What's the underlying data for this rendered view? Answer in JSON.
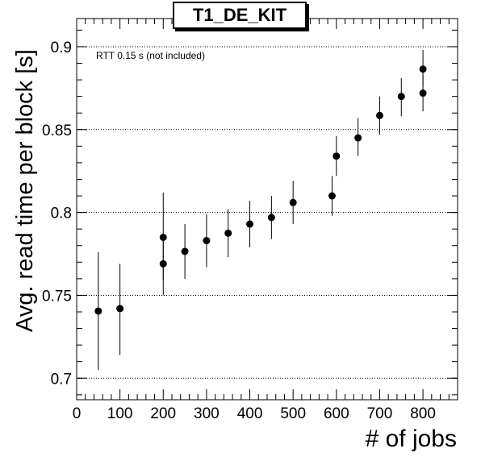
{
  "chart_data": {
    "type": "scatter",
    "title": "T1_DE_KIT",
    "annotation": "RTT 0.15 s (not included)",
    "xlabel": "# of jobs",
    "ylabel": "Avg. read time per block [s]",
    "xlim": [
      0,
      880
    ],
    "ylim": [
      0.687,
      0.917
    ],
    "x_ticks": [
      0,
      100,
      200,
      300,
      400,
      500,
      600,
      700,
      800
    ],
    "y_ticks": [
      0.7,
      0.75,
      0.8,
      0.85,
      0.9
    ],
    "y_tick_labels": [
      "0.7",
      "0.75",
      "0.8",
      "0.85",
      "0.9"
    ],
    "y_grid": true,
    "grid_style": "dotted",
    "series": [
      {
        "x": [
          50,
          100,
          200,
          200,
          250,
          300,
          350,
          400,
          450,
          500,
          590,
          600,
          650,
          700,
          750,
          800,
          800
        ],
        "y": [
          0.7405,
          0.742,
          0.785,
          0.769,
          0.7765,
          0.783,
          0.7875,
          0.793,
          0.797,
          0.806,
          0.81,
          0.834,
          0.845,
          0.8585,
          0.87,
          0.8865,
          0.872
        ],
        "y_low": [
          0.705,
          0.714,
          0.759,
          0.75,
          0.76,
          0.767,
          0.773,
          0.779,
          0.784,
          0.793,
          0.798,
          0.822,
          0.834,
          0.847,
          0.858,
          0.876,
          0.861
        ],
        "y_high": [
          0.776,
          0.769,
          0.812,
          0.787,
          0.793,
          0.799,
          0.802,
          0.807,
          0.81,
          0.819,
          0.822,
          0.846,
          0.857,
          0.87,
          0.881,
          0.898,
          0.883
        ]
      }
    ]
  }
}
